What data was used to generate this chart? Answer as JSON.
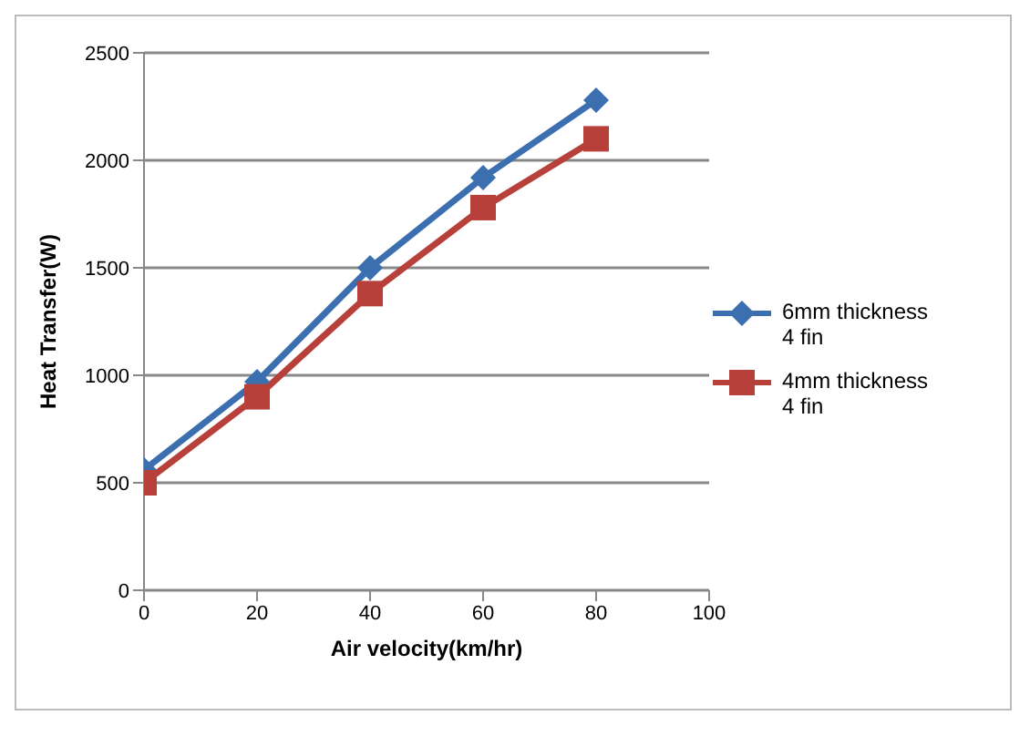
{
  "chart_data": {
    "type": "line",
    "xlabel": "Air velocity(km/hr)",
    "ylabel": "Heat Transfer(W)",
    "x": [
      0,
      20,
      40,
      60,
      80
    ],
    "xlim": [
      0,
      100
    ],
    "xticks": [
      0,
      20,
      40,
      60,
      80,
      100
    ],
    "ylim": [
      0,
      2500
    ],
    "yticks": [
      0,
      500,
      1000,
      1500,
      2000,
      2500
    ],
    "grid": "y",
    "legend": "right",
    "series": [
      {
        "name": "6mm thickness 4 fin",
        "color": "#3c6fb0",
        "marker": "diamond",
        "values": [
          560,
          970,
          1500,
          1920,
          2280
        ]
      },
      {
        "name": "4mm thickness 4 fin",
        "color": "#b8403a",
        "marker": "square",
        "values": [
          500,
          900,
          1380,
          1780,
          2100
        ]
      }
    ]
  }
}
